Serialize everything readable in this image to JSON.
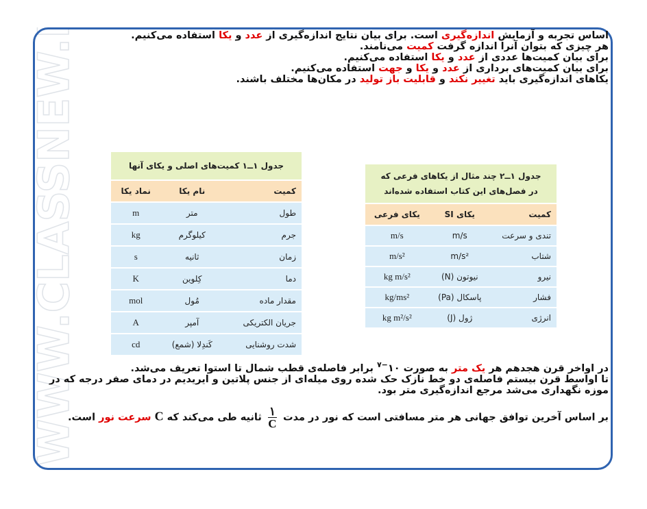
{
  "watermark": "WWW.CLASSNEW.IR",
  "bullets_top": [
    [
      "اساس تجربه و آزمایش ",
      {
        "text": "اندازه‌گیری",
        "color": "#e00000"
      },
      " است. برای بیان نتایج اندازه‌گیری از ",
      {
        "text": "عدد",
        "color": "#e00000"
      },
      " و ",
      {
        "text": "یکا",
        "color": "#e00000"
      },
      " استفاده می‌کنیم."
    ],
    [
      "هر چیزی که بتوان آنرا اندازه گرفت ",
      {
        "text": "کمیت",
        "color": "#e00000"
      },
      " می‌نامند."
    ],
    [
      "برای بیان کمیت‌ها عددی از ",
      {
        "text": "عدد",
        "color": "#e00000"
      },
      " و ",
      {
        "text": "یکا",
        "color": "#e00000"
      },
      " استفاده می‌کنیم."
    ],
    [
      "برای بیان کمیت‌های برداری از ",
      {
        "text": "عدد",
        "color": "#e00000"
      },
      " و ",
      {
        "text": "یکا",
        "color": "#e00000"
      },
      " و ",
      {
        "text": "جهت",
        "color": "#e00000"
      },
      " استفاده می‌کنیم."
    ],
    [
      "یکاهای اندازه‌گیری باید ",
      {
        "text": "تغییر نکند",
        "color": "#e00000"
      },
      " و ",
      {
        "text": "قابلیت باز تولید",
        "color": "#e00000"
      },
      " در مکان‌ها مختلف باشند."
    ]
  ],
  "table1": {
    "title": "جدول ۱ــ۱ کمیت‌های اصلی و یکای آنها",
    "headers": [
      "کمیت",
      "نام یکا",
      "نماد یکا"
    ],
    "rows": [
      [
        "طول",
        "متر",
        "m"
      ],
      [
        "جرم",
        "کیلوگرم",
        "kg"
      ],
      [
        "زمان",
        "ثانیه",
        "s"
      ],
      [
        "دما",
        "کِلوین",
        "K"
      ],
      [
        "مقدار ماده",
        "مُول",
        "mol"
      ],
      [
        "جریان الکتریکی",
        "آمپر",
        "A"
      ],
      [
        "شدت روشنایی",
        "کَندِلا (شمع)",
        "cd"
      ]
    ]
  },
  "table2": {
    "title": "جدول ۱ــ۲ چند مثال از یکاهای فرعی که در فصل‌های این کتاب استفاده شده‌اند",
    "headers": [
      "کمیت",
      "یکای SI",
      "یکای فرعی"
    ],
    "rows": [
      [
        "تندی و سرعت",
        "m/s",
        "m/s"
      ],
      [
        "شتاب",
        "m/s²",
        "m/s²"
      ],
      [
        "نیرو",
        "نیوتون (N)",
        "kg m/s²"
      ],
      [
        "فشار",
        "پاسکال (Pa)",
        "kg/ms²"
      ],
      [
        "انرژی",
        "ژول (J)",
        "kg m²/s²"
      ]
    ]
  },
  "bullets_bottom": [
    [
      "در اواخر قرن هجدهم هر ",
      {
        "text": "یک متر",
        "color": "#e00000"
      },
      " به صورت ۱۰",
      {
        "sup": "−۷"
      },
      " برابر فاصله‌ی قطب شمال تا استوا تعریف می‌شد."
    ],
    [
      "تا اواسط قرن بیستم فاصله‌ی دو خط نازک حک شده روی میله‌ای از جنس پلاتین و ایریدیم در دمای صفر درجه که در موزه نگهداری می‌شد مرجع اندازه‌گیری متر بود."
    ],
    [
      "بر اساس آخرین توافق جهانی هر متر مسافتی است که نور در مدت ",
      {
        "numerator": "۱",
        "denominator": "C"
      },
      " ثانیه طی می‌کند که ",
      {
        "text": "C",
        "color": "#111111"
      },
      " ",
      {
        "text": "سرعت نور",
        "color": "#e00000"
      },
      " است."
    ]
  ]
}
